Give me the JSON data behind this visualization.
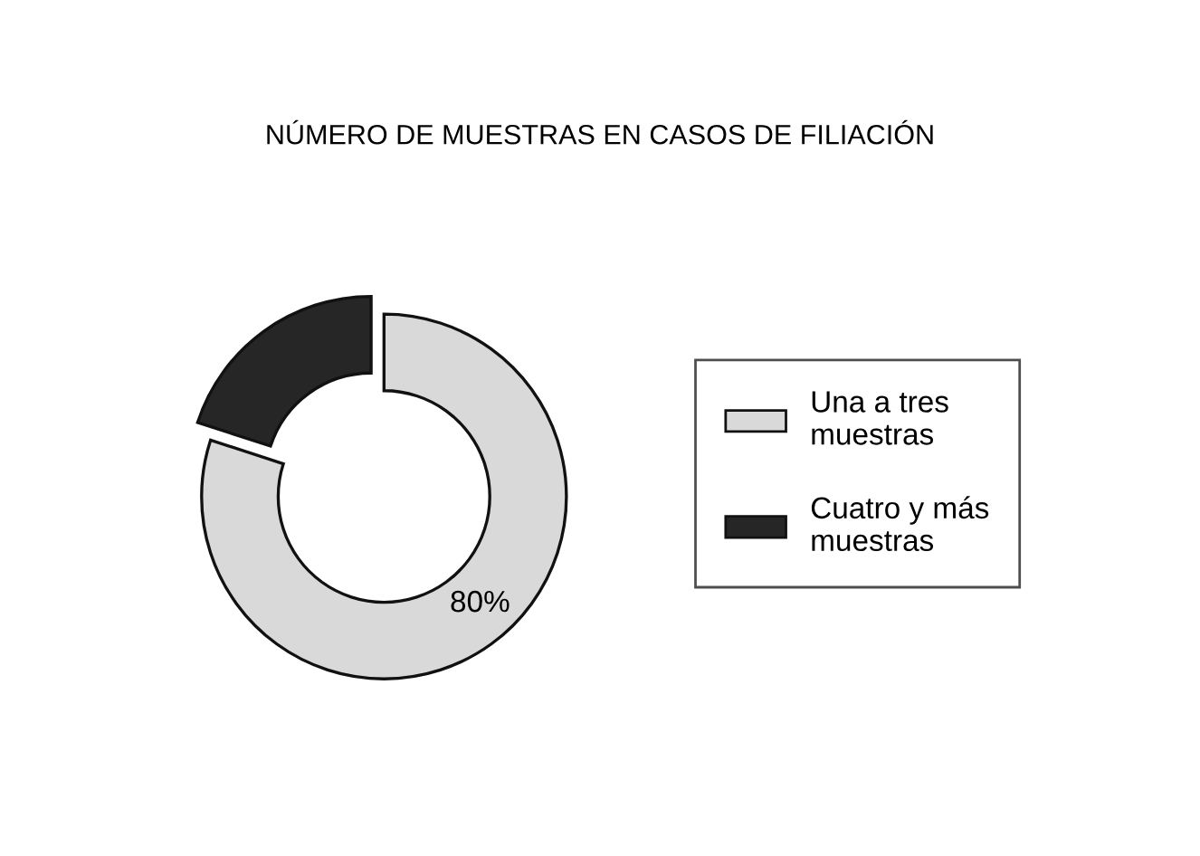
{
  "chart_data": {
    "type": "donut",
    "title": "NÚMERO DE MUESTRAS EN CASOS DE FILIACIÓN",
    "categories": [
      "Una a tres muestras",
      "Cuatro y más muestras"
    ],
    "values": [
      80,
      20
    ],
    "colors": [
      "#d9d9d9",
      "#262626"
    ],
    "value_labels": [
      "80%",
      null
    ],
    "legend": "right"
  }
}
